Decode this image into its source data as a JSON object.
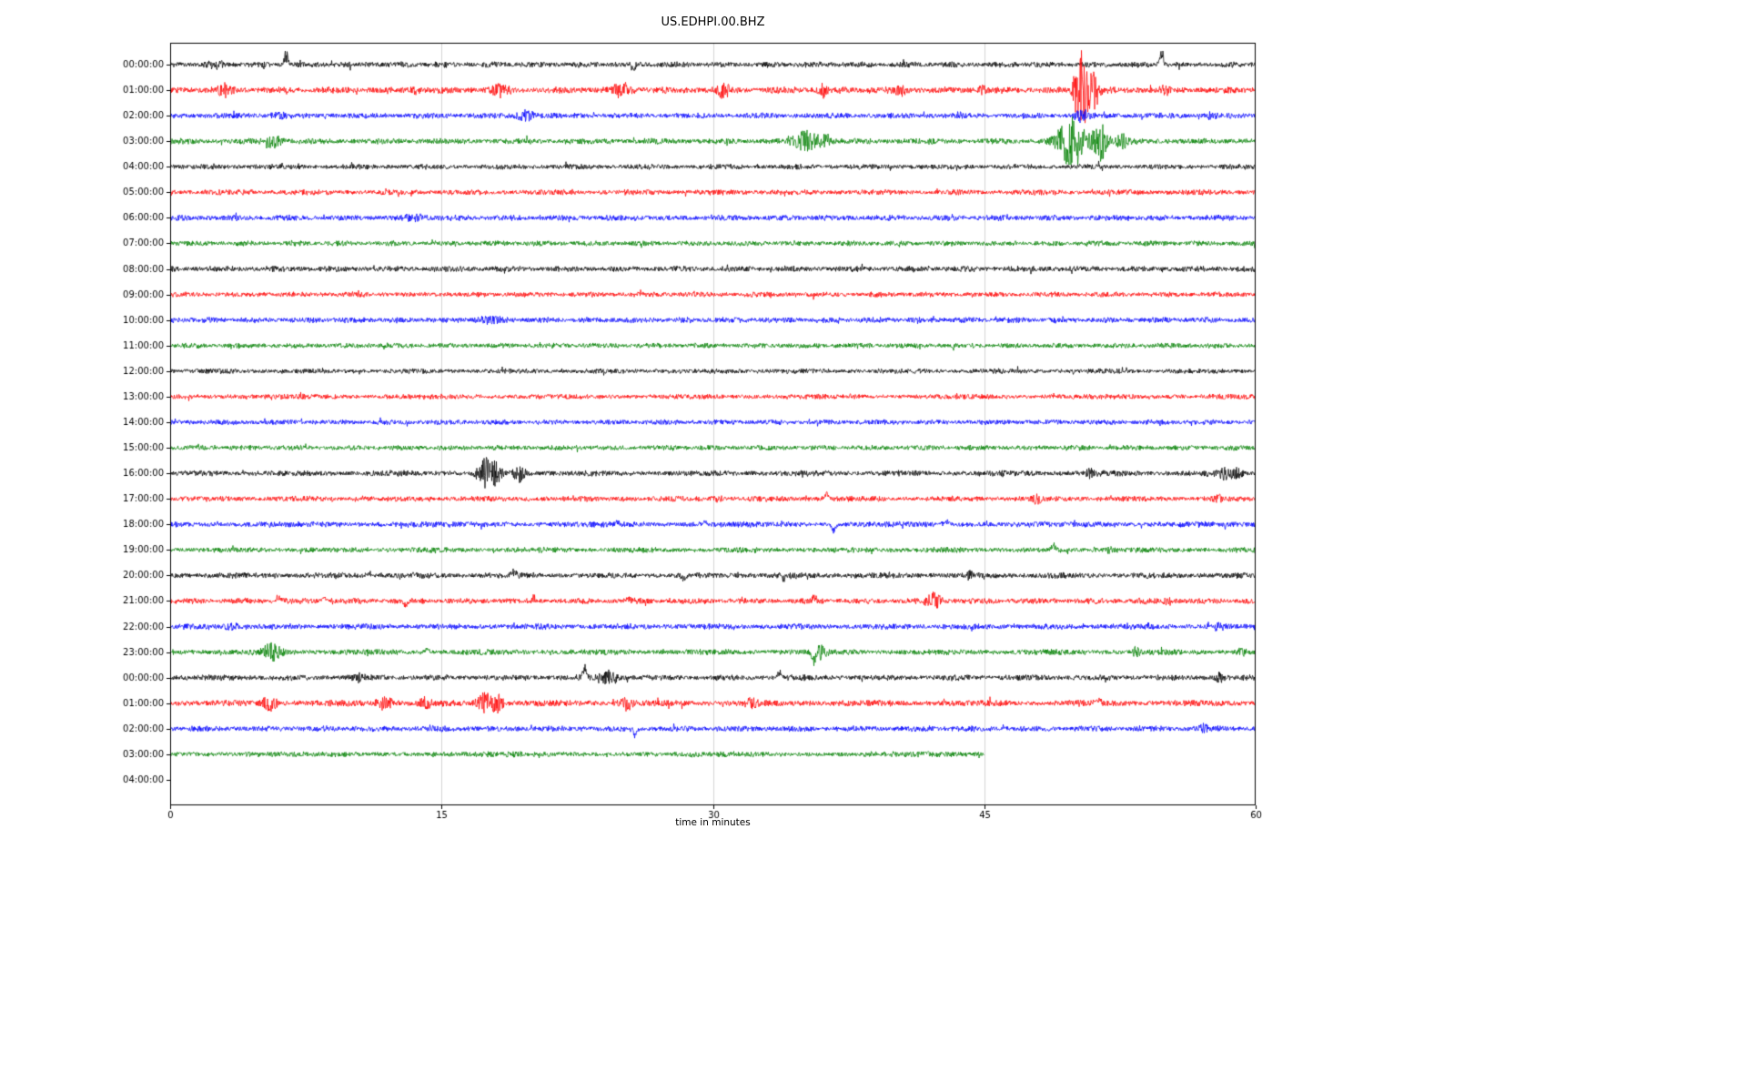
{
  "chart_data": {
    "type": "line",
    "title": "US.EDHPI.00.BHZ",
    "xlabel": "time in minutes",
    "xlim": [
      0,
      60
    ],
    "xticks": [
      0,
      15,
      30,
      45,
      60
    ],
    "grid": true,
    "legend": "none",
    "trace_colors_cycle": [
      "#000000",
      "#ff0000",
      "#0000ff",
      "#008000"
    ],
    "description": "Helicorder day plot: one horizontal trace per hour, amplitude fuzz with event bursts/spikes; units are minutes 0-60 on x axis",
    "rows": [
      {
        "label": "00:00:00",
        "color": "#000000",
        "end": 60,
        "noise": 1.0,
        "events": [
          {
            "t": 6.4,
            "a": 16,
            "w": 0.1,
            "type": "spike"
          },
          {
            "t": 25.6,
            "a": -9,
            "w": 0.08,
            "type": "spike"
          },
          {
            "t": 54.8,
            "a": 20,
            "w": 0.1,
            "type": "spike"
          },
          {
            "t": 2.5,
            "a": 3,
            "w": 0.3,
            "type": "burst"
          }
        ]
      },
      {
        "label": "01:00:00",
        "color": "#ff0000",
        "end": 60,
        "noise": 1.15,
        "events": [
          {
            "t": 3.0,
            "a": 5,
            "w": 0.25,
            "type": "burst"
          },
          {
            "t": 13.6,
            "a": 3,
            "w": 0.2,
            "type": "burst"
          },
          {
            "t": 18.3,
            "a": 6,
            "w": 0.3,
            "type": "burst"
          },
          {
            "t": 25.0,
            "a": 8,
            "w": 0.3,
            "type": "burst"
          },
          {
            "t": 30.6,
            "a": 7,
            "w": 0.2,
            "type": "burst"
          },
          {
            "t": 36.1,
            "a": 6,
            "w": 0.2,
            "type": "burst"
          },
          {
            "t": 40.4,
            "a": 5,
            "w": 0.18,
            "type": "burst"
          },
          {
            "t": 44.9,
            "a": 4,
            "w": 0.15,
            "type": "burst"
          },
          {
            "t": 50.4,
            "a": 45,
            "w": 0.3,
            "type": "burst"
          },
          {
            "t": 51.1,
            "a": 18,
            "w": 0.18,
            "type": "burst"
          },
          {
            "t": 55.0,
            "a": 3,
            "w": 0.2,
            "type": "burst"
          }
        ]
      },
      {
        "label": "02:00:00",
        "color": "#0000ff",
        "end": 60,
        "noise": 1.0,
        "events": [
          {
            "t": 19.7,
            "a": 5,
            "w": 0.35,
            "type": "burst"
          },
          {
            "t": 50.3,
            "a": 5,
            "w": 0.25,
            "type": "burst"
          },
          {
            "t": 57.6,
            "a": 3,
            "w": 0.2,
            "type": "burst"
          },
          {
            "t": 6.0,
            "a": 2.5,
            "w": 0.3,
            "type": "burst"
          }
        ]
      },
      {
        "label": "03:00:00",
        "color": "#008000",
        "end": 60,
        "noise": 1.0,
        "events": [
          {
            "t": 5.7,
            "a": 7,
            "w": 0.3,
            "type": "burst"
          },
          {
            "t": 35.2,
            "a": 10,
            "w": 0.5,
            "type": "burst"
          },
          {
            "t": 36.2,
            "a": 5,
            "w": 0.2,
            "type": "burst"
          },
          {
            "t": 49.8,
            "a": 26,
            "w": 0.55,
            "type": "burst"
          },
          {
            "t": 51.4,
            "a": 20,
            "w": 0.3,
            "type": "burst"
          },
          {
            "t": 52.6,
            "a": 8,
            "w": 0.2,
            "type": "burst"
          }
        ]
      },
      {
        "label": "04:00:00",
        "color": "#000000",
        "end": 60,
        "noise": 0.9,
        "events": []
      },
      {
        "label": "05:00:00",
        "color": "#ff0000",
        "end": 60,
        "noise": 0.95,
        "events": []
      },
      {
        "label": "06:00:00",
        "color": "#0000ff",
        "end": 60,
        "noise": 1.0,
        "events": [
          {
            "t": 13.6,
            "a": 2.5,
            "w": 0.5,
            "type": "burst"
          }
        ]
      },
      {
        "label": "07:00:00",
        "color": "#008000",
        "end": 60,
        "noise": 0.9,
        "events": []
      },
      {
        "label": "08:00:00",
        "color": "#000000",
        "end": 60,
        "noise": 1.0,
        "events": []
      },
      {
        "label": "09:00:00",
        "color": "#ff0000",
        "end": 60,
        "noise": 0.9,
        "events": []
      },
      {
        "label": "10:00:00",
        "color": "#0000ff",
        "end": 60,
        "noise": 1.0,
        "events": [
          {
            "t": 17.7,
            "a": 2,
            "w": 0.6,
            "type": "burst"
          }
        ]
      },
      {
        "label": "11:00:00",
        "color": "#008000",
        "end": 60,
        "noise": 0.9,
        "events": []
      },
      {
        "label": "12:00:00",
        "color": "#000000",
        "end": 60,
        "noise": 0.85,
        "events": []
      },
      {
        "label": "13:00:00",
        "color": "#ff0000",
        "end": 60,
        "noise": 0.9,
        "events": []
      },
      {
        "label": "14:00:00",
        "color": "#0000ff",
        "end": 60,
        "noise": 0.9,
        "events": []
      },
      {
        "label": "15:00:00",
        "color": "#008000",
        "end": 60,
        "noise": 0.9,
        "events": []
      },
      {
        "label": "16:00:00",
        "color": "#000000",
        "end": 60,
        "noise": 1.0,
        "events": [
          {
            "t": 17.5,
            "a": 15,
            "w": 0.35,
            "type": "burst"
          },
          {
            "t": 18.1,
            "a": 6,
            "w": 0.2,
            "type": "burst"
          },
          {
            "t": 19.3,
            "a": 8,
            "w": 0.22,
            "type": "burst"
          },
          {
            "t": 50.9,
            "a": 4,
            "w": 0.2,
            "type": "burst"
          },
          {
            "t": 58.3,
            "a": 5,
            "w": 0.3,
            "type": "burst"
          },
          {
            "t": 59.0,
            "a": 4,
            "w": 0.2,
            "type": "burst"
          }
        ]
      },
      {
        "label": "17:00:00",
        "color": "#ff0000",
        "end": 60,
        "noise": 0.95,
        "events": [
          {
            "t": 30.2,
            "a": 3,
            "w": 0.2,
            "type": "burst"
          },
          {
            "t": 36.3,
            "a": 7,
            "w": 0.12,
            "type": "spike"
          },
          {
            "t": 47.9,
            "a": 4,
            "w": 0.15,
            "type": "burst"
          },
          {
            "t": 57.9,
            "a": 3,
            "w": 0.2,
            "type": "burst"
          }
        ]
      },
      {
        "label": "18:00:00",
        "color": "#0000ff",
        "end": 60,
        "noise": 1.0,
        "events": [
          {
            "t": 24.7,
            "a": 5,
            "w": 0.1,
            "type": "spike"
          },
          {
            "t": 29.5,
            "a": 5,
            "w": 0.1,
            "type": "spike"
          },
          {
            "t": 36.7,
            "a": -9,
            "w": 0.1,
            "type": "spike"
          },
          {
            "t": 42.9,
            "a": 5,
            "w": 0.12,
            "type": "spike"
          }
        ]
      },
      {
        "label": "19:00:00",
        "color": "#008000",
        "end": 60,
        "noise": 0.95,
        "events": [
          {
            "t": 48.8,
            "a": 7,
            "w": 0.1,
            "type": "spike"
          },
          {
            "t": 52.0,
            "a": 3,
            "w": 0.15,
            "type": "burst"
          }
        ]
      },
      {
        "label": "20:00:00",
        "color": "#000000",
        "end": 60,
        "noise": 1.0,
        "events": [
          {
            "t": 11.0,
            "a": 5,
            "w": 0.1,
            "type": "spike"
          },
          {
            "t": 13.5,
            "a": 4,
            "w": 0.1,
            "type": "spike"
          },
          {
            "t": 19.0,
            "a": 6,
            "w": 0.1,
            "type": "spike"
          },
          {
            "t": 28.4,
            "a": -8,
            "w": 0.1,
            "type": "spike"
          },
          {
            "t": 33.9,
            "a": -7,
            "w": 0.1,
            "type": "spike"
          },
          {
            "t": 44.2,
            "a": 3,
            "w": 0.12,
            "type": "burst"
          }
        ]
      },
      {
        "label": "21:00:00",
        "color": "#ff0000",
        "end": 60,
        "noise": 1.0,
        "events": [
          {
            "t": 6.0,
            "a": 6,
            "w": 0.12,
            "type": "spike"
          },
          {
            "t": 8.5,
            "a": 5,
            "w": 0.12,
            "type": "spike"
          },
          {
            "t": 13.0,
            "a": -7,
            "w": 0.1,
            "type": "spike"
          },
          {
            "t": 20.1,
            "a": 6,
            "w": 0.1,
            "type": "spike"
          },
          {
            "t": 25.3,
            "a": 4,
            "w": 0.12,
            "type": "spike"
          },
          {
            "t": 35.6,
            "a": 6,
            "w": 0.1,
            "type": "spike"
          },
          {
            "t": 42.2,
            "a": 8,
            "w": 0.3,
            "type": "burst"
          },
          {
            "t": 55.2,
            "a": 3,
            "w": 0.2,
            "type": "burst"
          }
        ]
      },
      {
        "label": "22:00:00",
        "color": "#0000ff",
        "end": 60,
        "noise": 1.0,
        "events": [
          {
            "t": 3.4,
            "a": 3,
            "w": 0.3,
            "type": "burst"
          },
          {
            "t": 57.9,
            "a": 3,
            "w": 0.2,
            "type": "burst"
          }
        ]
      },
      {
        "label": "23:00:00",
        "color": "#008000",
        "end": 60,
        "noise": 1.0,
        "events": [
          {
            "t": 5.6,
            "a": 8,
            "w": 0.4,
            "type": "burst"
          },
          {
            "t": 14.2,
            "a": 4,
            "w": 0.12,
            "type": "spike"
          },
          {
            "t": 35.6,
            "a": -13,
            "w": 0.12,
            "type": "spike"
          },
          {
            "t": 35.9,
            "a": 6,
            "w": 0.25,
            "type": "burst"
          },
          {
            "t": 53.4,
            "a": 4,
            "w": 0.15,
            "type": "burst"
          },
          {
            "t": 59.2,
            "a": 3,
            "w": 0.2,
            "type": "burst"
          }
        ]
      },
      {
        "label": "00:00:00",
        "color": "#000000",
        "end": 60,
        "noise": 1.0,
        "events": [
          {
            "t": 22.9,
            "a": 13,
            "w": 0.1,
            "type": "spike"
          },
          {
            "t": 24.2,
            "a": 7,
            "w": 0.4,
            "type": "burst"
          },
          {
            "t": 33.7,
            "a": 8,
            "w": 0.1,
            "type": "spike"
          },
          {
            "t": 10.5,
            "a": 3,
            "w": 0.2,
            "type": "burst"
          },
          {
            "t": 58.0,
            "a": 4,
            "w": 0.25,
            "type": "burst"
          }
        ]
      },
      {
        "label": "01:00:00",
        "color": "#ff0000",
        "end": 60,
        "noise": 1.1,
        "events": [
          {
            "t": 5.5,
            "a": 7,
            "w": 0.3,
            "type": "burst"
          },
          {
            "t": 11.9,
            "a": 7,
            "w": 0.3,
            "type": "burst"
          },
          {
            "t": 14.1,
            "a": 5,
            "w": 0.2,
            "type": "burst"
          },
          {
            "t": 17.4,
            "a": 10,
            "w": 0.3,
            "type": "burst"
          },
          {
            "t": 18.1,
            "a": 9,
            "w": 0.25,
            "type": "burst"
          },
          {
            "t": 25.2,
            "a": 6,
            "w": 0.25,
            "type": "burst"
          },
          {
            "t": 32.1,
            "a": 5,
            "w": 0.2,
            "type": "burst"
          },
          {
            "t": 51.3,
            "a": 6,
            "w": 0.15,
            "type": "spike"
          }
        ]
      },
      {
        "label": "02:00:00",
        "color": "#0000ff",
        "end": 60,
        "noise": 1.0,
        "events": [
          {
            "t": 25.7,
            "a": -9,
            "w": 0.1,
            "type": "spike"
          },
          {
            "t": 57.2,
            "a": 4,
            "w": 0.2,
            "type": "burst"
          }
        ]
      },
      {
        "label": "03:00:00",
        "color": "#008000",
        "end": 45,
        "noise": 0.95,
        "events": []
      },
      {
        "label": "04:00:00",
        "color": "#000000",
        "end": 0,
        "noise": 0,
        "events": []
      }
    ]
  }
}
